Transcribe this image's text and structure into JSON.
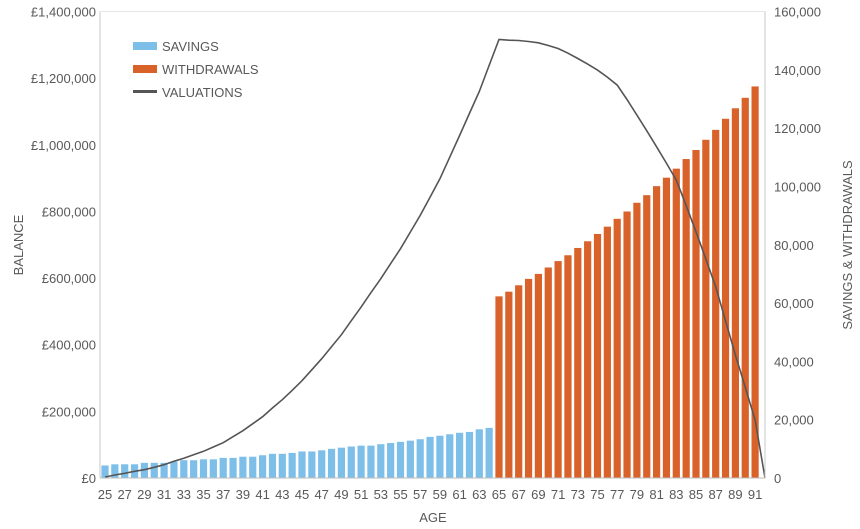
{
  "chart_data": {
    "type": "bar+line",
    "xlabel": "AGE",
    "ylabel_left": "BALANCE",
    "ylabel_right": "SAVINGS & WITHDRAWALS",
    "left_axis": {
      "range": [
        0,
        1400000
      ],
      "step": 200000,
      "tick_labels": [
        "£0",
        "£200,000",
        "£400,000",
        "£600,000",
        "£800,000",
        "£1,000,000",
        "£1,200,000",
        "£1,400,000"
      ]
    },
    "right_axis": {
      "range": [
        0,
        160000
      ],
      "step": 20000,
      "tick_labels": [
        "0",
        "20,000",
        "40,000",
        "60,000",
        "80,000",
        "100,000",
        "120,000",
        "140,000",
        "160,000"
      ]
    },
    "x_tick_labels": [
      "25",
      "27",
      "29",
      "31",
      "33",
      "35",
      "37",
      "39",
      "41",
      "43",
      "45",
      "47",
      "49",
      "51",
      "53",
      "55",
      "57",
      "59",
      "61",
      "63",
      "65",
      "67",
      "69",
      "71",
      "73",
      "75",
      "77",
      "79",
      "81",
      "83",
      "85",
      "87",
      "89",
      "91"
    ],
    "legend": {
      "placement": "top-left",
      "entries": [
        "SAVINGS",
        "WITHDRAWALS",
        "VALUATIONS"
      ]
    },
    "colors": {
      "savings": "#7dbfe9",
      "withdrawals": "#d9622b",
      "valuations": "#555555",
      "axis": "#c8c8c8"
    },
    "ages": [
      25,
      26,
      27,
      28,
      29,
      30,
      31,
      32,
      33,
      34,
      35,
      36,
      37,
      38,
      39,
      40,
      41,
      42,
      43,
      44,
      45,
      46,
      47,
      48,
      49,
      50,
      51,
      52,
      53,
      54,
      55,
      56,
      57,
      58,
      59,
      60,
      61,
      62,
      63,
      64,
      65,
      66,
      67,
      68,
      69,
      70,
      71,
      72,
      73,
      74,
      75,
      76,
      77,
      78,
      79,
      80,
      81,
      82,
      83,
      84,
      85,
      86,
      87,
      88,
      89,
      90,
      91
    ],
    "series": [
      {
        "name": "SAVINGS",
        "axis": "right",
        "type": "bar",
        "start_age": 25,
        "values": [
          4300,
          4700,
          4700,
          4700,
          5200,
          5200,
          5200,
          5600,
          6100,
          6100,
          6400,
          6400,
          6900,
          6900,
          7300,
          7300,
          7800,
          8300,
          8300,
          8600,
          9100,
          9100,
          9500,
          10000,
          10400,
          10800,
          11100,
          11100,
          11600,
          12000,
          12400,
          12800,
          13300,
          14100,
          14500,
          15000,
          15500,
          15800,
          16700,
          17200
        ]
      },
      {
        "name": "WITHDRAWALS",
        "axis": "right",
        "type": "bar",
        "start_age": 65,
        "values": [
          62300,
          63900,
          66100,
          68300,
          70000,
          72200,
          74400,
          76400,
          78900,
          81200,
          83700,
          86200,
          88900,
          91400,
          94400,
          97000,
          100100,
          103000,
          106100,
          109400,
          112500,
          116000,
          119400,
          123200,
          126800,
          130400,
          134300
        ]
      },
      {
        "name": "VALUATIONS",
        "axis": "left",
        "type": "line",
        "start_age": 25,
        "values": [
          3000,
          9000,
          14000,
          20000,
          25000,
          32000,
          40000,
          50000,
          59000,
          70000,
          80000,
          93000,
          106000,
          124000,
          142000,
          163000,
          184000,
          210000,
          235000,
          263000,
          292000,
          325000,
          358000,
          394000,
          430000,
          472000,
          513000,
          556000,
          598000,
          643000,
          688000,
          738000,
          788000,
          843000,
          898000,
          963000,
          1028000,
          1094000,
          1160000,
          1238000,
          1316000,
          1314000,
          1313000,
          1310000,
          1306000,
          1298000,
          1289000,
          1275000,
          1259000,
          1242000,
          1224000,
          1203000,
          1179000,
          1136000,
          1089000,
          1042000,
          994000,
          945000,
          894000,
          818000,
          739000,
          657000,
          574000,
          472000,
          369000,
          272000,
          174000
        ],
        "end_value": 0
      }
    ]
  }
}
